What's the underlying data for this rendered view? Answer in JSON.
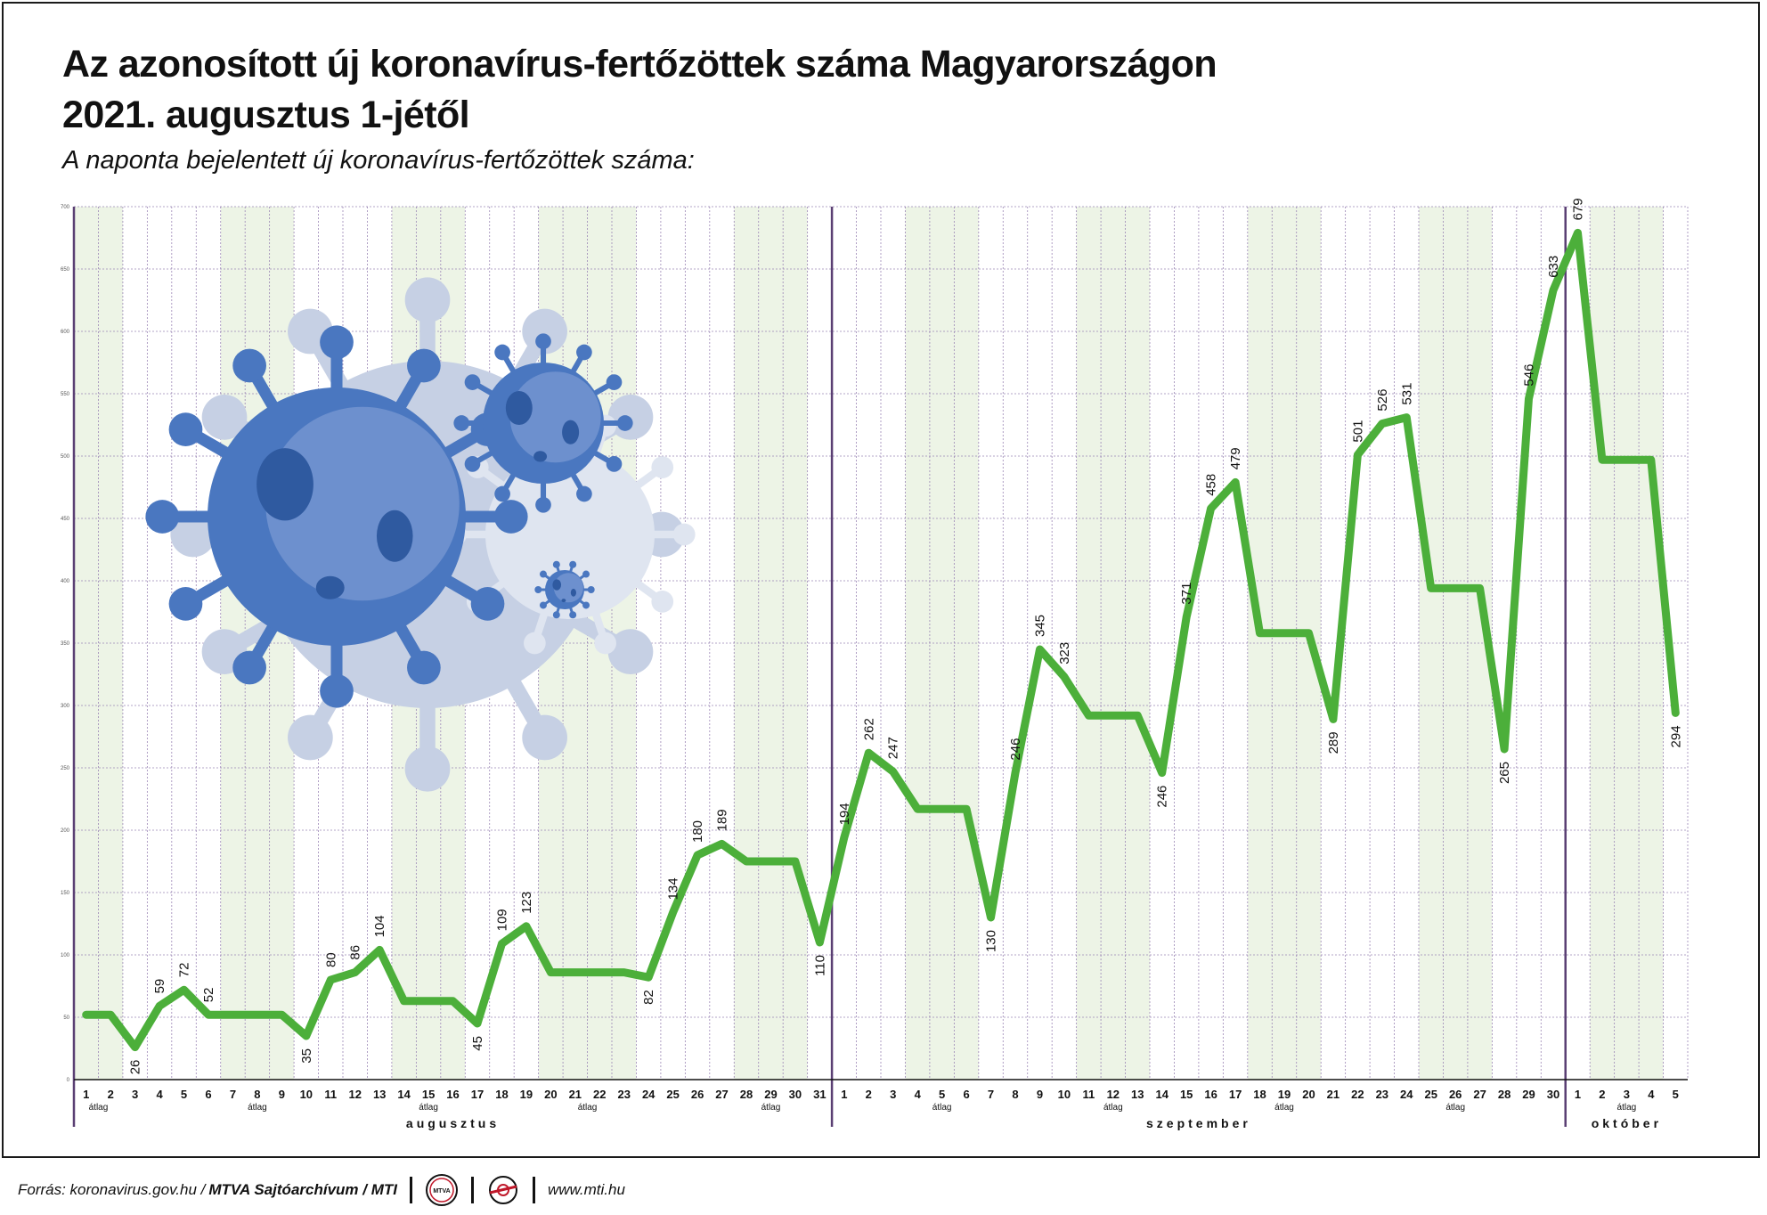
{
  "header": {
    "title_line1": "Az azonosított új koronavírus-fertőzöttek száma Magyarországon",
    "title_line2": "2021. augusztus 1-jétől",
    "subtitle": "A naponta bejelentett új koronavírus-fertőzöttek száma:"
  },
  "footer": {
    "source_prefix": "Forrás: koronavirus.gov.hu / ",
    "source_bold": "MTVA Sajtóarchívum / MTI",
    "logo1_text": "MTVA",
    "website": "www.mti.hu"
  },
  "colors": {
    "line": "#4caf3a",
    "weekend_band": "#edf4e6",
    "grid": "#9b86b5",
    "month_divider": "#5a3f73",
    "text": "#111111",
    "virus_main": "#4a77c0",
    "virus_ghost": "#c6d0e4"
  },
  "decorations": [
    "virus-illustration"
  ],
  "chart_data": {
    "type": "line",
    "title": "Az azonosított új koronavírus-fertőzöttek száma Magyarországon 2021. augusztus 1-jétől",
    "subtitle": "A naponta bejelentett új koronavírus-fertőzöttek száma:",
    "ylim": [
      0,
      700
    ],
    "y_ticks": [
      0,
      50,
      100,
      150,
      200,
      250,
      300,
      350,
      400,
      450,
      500,
      550,
      600,
      650,
      700
    ],
    "grid": true,
    "legend": "none",
    "months": [
      {
        "name": "augusztus",
        "start": 0,
        "end": 30
      },
      {
        "name": "szeptember",
        "start": 31,
        "end": 60
      },
      {
        "name": "október",
        "start": 61,
        "end": 65
      }
    ],
    "x": [
      "1",
      "2",
      "3",
      "4",
      "5",
      "6",
      "7",
      "8",
      "9",
      "10",
      "11",
      "12",
      "13",
      "14",
      "15",
      "16",
      "17",
      "18",
      "19",
      "20",
      "21",
      "22",
      "23",
      "24",
      "25",
      "26",
      "27",
      "28",
      "29",
      "30",
      "31",
      "1",
      "2",
      "3",
      "4",
      "5",
      "6",
      "7",
      "8",
      "9",
      "10",
      "11",
      "12",
      "13",
      "14",
      "15",
      "16",
      "17",
      "18",
      "19",
      "20",
      "21",
      "22",
      "23",
      "24",
      "25",
      "26",
      "27",
      "28",
      "29",
      "30",
      "1",
      "2",
      "3",
      "4",
      "5"
    ],
    "avg_label": "átlag",
    "avg_groups": [
      [
        0,
        1
      ],
      [
        6,
        8
      ],
      [
        13,
        15
      ],
      [
        19,
        22
      ],
      [
        27,
        29
      ],
      [
        34,
        36
      ],
      [
        41,
        43
      ],
      [
        48,
        50
      ],
      [
        55,
        57
      ],
      [
        62,
        64
      ]
    ],
    "weekend_bands": [
      [
        0,
        1
      ],
      [
        6,
        8
      ],
      [
        13,
        15
      ],
      [
        19,
        22
      ],
      [
        27,
        29
      ],
      [
        34,
        36
      ],
      [
        41,
        43
      ],
      [
        48,
        50
      ],
      [
        55,
        57
      ],
      [
        62,
        64
      ]
    ],
    "series": [
      {
        "values": [
          52,
          52,
          26,
          59,
          72,
          52,
          52,
          52,
          52,
          35,
          80,
          86,
          104,
          63,
          63,
          63,
          45,
          109,
          123,
          86,
          86,
          86,
          86,
          82,
          134,
          180,
          189,
          175,
          175,
          175,
          110,
          194,
          262,
          247,
          217,
          217,
          217,
          130,
          246,
          345,
          323,
          292,
          292,
          292,
          246,
          371,
          458,
          479,
          358,
          358,
          358,
          289,
          501,
          526,
          531,
          394,
          394,
          394,
          265,
          546,
          633,
          679,
          497,
          497,
          497,
          294
        ],
        "labels": [
          null,
          null,
          "26",
          "59",
          "72",
          "52",
          null,
          null,
          null,
          "35",
          "80",
          "86",
          "104",
          null,
          null,
          null,
          "45",
          "109",
          "123",
          null,
          null,
          null,
          null,
          "82",
          "134",
          "180",
          "189",
          null,
          null,
          null,
          "110",
          "194",
          "262",
          "247",
          null,
          null,
          null,
          "130",
          "246",
          "345",
          "323",
          null,
          null,
          null,
          "246",
          "371",
          "458",
          "479",
          null,
          null,
          null,
          "289",
          "501",
          "526",
          "531",
          null,
          null,
          null,
          "265",
          "546",
          "633",
          "679",
          null,
          null,
          null,
          "294"
        ],
        "label_pos": [
          null,
          null,
          "below",
          "above",
          "above",
          "above",
          null,
          null,
          null,
          "below",
          "above",
          "above",
          "above",
          null,
          null,
          null,
          "below",
          "above",
          "above",
          null,
          null,
          null,
          null,
          "below",
          "above",
          "above",
          "above",
          null,
          null,
          null,
          "below",
          "above",
          "above",
          "above",
          null,
          null,
          null,
          "below",
          "above",
          "above",
          "above",
          null,
          null,
          null,
          "below",
          "above",
          "above",
          "above",
          null,
          null,
          null,
          "below",
          "above",
          "above",
          "above",
          null,
          null,
          null,
          "below",
          "above",
          "above",
          "above",
          null,
          null,
          null,
          "below"
        ]
      }
    ]
  }
}
